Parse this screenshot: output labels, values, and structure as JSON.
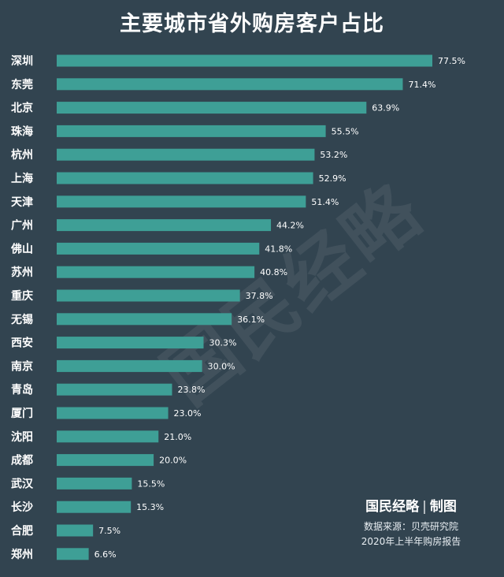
{
  "title": "主要城市省外购房客户占比",
  "watermark": "国民经略",
  "footer": {
    "brand": "国民经略",
    "brand_sep": "|",
    "brand_suffix": "制图",
    "source_line1": "数据来源：贝壳研究院",
    "source_line2": "2020年上半年购房报告"
  },
  "colors": {
    "background": "#324450",
    "bar": "#3e9f96",
    "text": "#ffffff"
  },
  "chart_data": {
    "type": "bar",
    "orientation": "horizontal",
    "title": "主要城市省外购房客户占比",
    "categories": [
      "深圳",
      "东莞",
      "北京",
      "珠海",
      "杭州",
      "上海",
      "天津",
      "广州",
      "佛山",
      "苏州",
      "重庆",
      "无锡",
      "西安",
      "南京",
      "青岛",
      "厦门",
      "沈阳",
      "成都",
      "武汉",
      "长沙",
      "合肥",
      "郑州"
    ],
    "values": [
      77.5,
      71.4,
      63.9,
      55.5,
      53.2,
      52.9,
      51.4,
      44.2,
      41.8,
      40.8,
      37.8,
      36.1,
      30.3,
      30.0,
      23.8,
      23.0,
      21.0,
      20.0,
      15.5,
      15.3,
      7.5,
      6.6
    ],
    "labels": [
      "77.5%",
      "71.4%",
      "63.9%",
      "55.5%",
      "53.2%",
      "52.9%",
      "51.4%",
      "44.2%",
      "41.8%",
      "40.8%",
      "37.8%",
      "36.1%",
      "30.3%",
      "30.0%",
      "23.8%",
      "23.0%",
      "21.0%",
      "20.0%",
      "15.5%",
      "15.3%",
      "7.5%",
      "6.6%"
    ],
    "unit": "%",
    "xlim": [
      0,
      77.5
    ],
    "xlabel": "",
    "ylabel": "",
    "grid": false,
    "legend": "none"
  }
}
